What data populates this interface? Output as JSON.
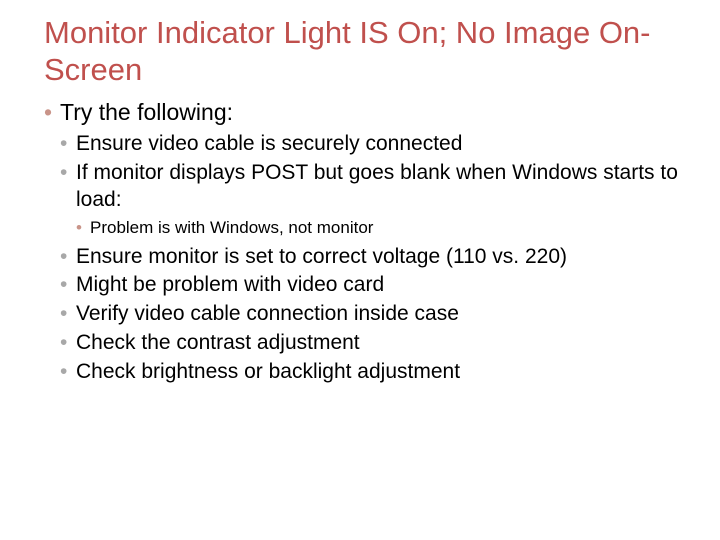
{
  "colors": {
    "title": "#c0504d",
    "body": "#000000",
    "bullet_lvl1": "#c99489",
    "bullet_lvl2": "#a8a8a8",
    "bullet_lvl3": "#c99489",
    "background": "#ffffff"
  },
  "typography": {
    "title_fontsize": 31,
    "lvl1_fontsize": 23,
    "lvl2_fontsize": 21,
    "lvl3_fontsize": 17,
    "font_family": "Arial"
  },
  "title": "Monitor Indicator Light IS On; No Image On-Screen",
  "bullets": {
    "lvl1": [
      {
        "text": "Try the following:",
        "children": [
          {
            "text": "Ensure video cable is securely connected"
          },
          {
            "text": "If monitor displays POST but goes blank when Windows starts to load:",
            "children": [
              {
                "text": "Problem is with Windows, not monitor"
              }
            ]
          },
          {
            "text": "Ensure monitor is set to correct voltage (110 vs. 220)"
          },
          {
            "text": "Might be problem with video card"
          },
          {
            "text": "Verify video cable connection inside case"
          },
          {
            "text": "Check the contrast adjustment"
          },
          {
            "text": "Check brightness or backlight adjustment"
          }
        ]
      }
    ]
  }
}
